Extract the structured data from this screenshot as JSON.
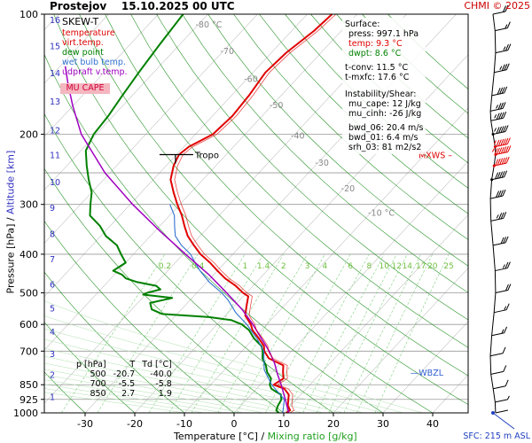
{
  "header": {
    "station": "Prostejov",
    "datetime": "15.10.2025 00 UTC",
    "copyright": "CHMI © 2025"
  },
  "legend": {
    "title": "SKEW-T",
    "items": [
      {
        "label": "temperature",
        "color": "#e00000"
      },
      {
        "label": "virt.temp.",
        "color": "#e00000"
      },
      {
        "label": "dew point",
        "color": "#008000"
      },
      {
        "label": "wet bulb temp.",
        "color": "#3070d0"
      },
      {
        "label": "udpraft v.temp.",
        "color": "#a000c0"
      }
    ],
    "mu_cape_label": "MU CAPE"
  },
  "surface": {
    "heading": "Surface:",
    "press": "press: 997.1 hPa",
    "temp": "temp: 9.3 °C",
    "dwpt": "dwpt: 8.6 °C",
    "tconv": "t-conv: 11.5 °C",
    "tmxfc": "t-mxfc: 17.6 °C"
  },
  "instability": {
    "heading": "Instability/Shear:",
    "mu_cape": "mu_cape: 12 J/kg",
    "mu_cinh": "mu_cinh: -26 J/kg",
    "bwd_06": "bwd_06: 20.4 m/s",
    "bwd_01": "bwd_01: 6.4 m/s",
    "srh_03": "srh_03: 81 m2/s2"
  },
  "level_table": {
    "headers": [
      "p [hPa]",
      "T",
      "Td [°C]"
    ],
    "rows": [
      [
        "500",
        "-20.7",
        "-40.0"
      ],
      [
        "700",
        "-5.5",
        "-5.8"
      ],
      [
        "850",
        "2.7",
        "1.9"
      ]
    ]
  },
  "annotations": {
    "tropo": "Tropo",
    "mxws": "MXWS",
    "wbzl": "WBZL",
    "sfc": "SFC: 215 m ASL"
  },
  "axes": {
    "xlabel": "Temperature [°C]",
    "xlabel_sep": "/",
    "xlabel2": "Mixing ratio [g/kg]",
    "ylabel": "Pressure [hPa]",
    "ylabel_sep": "/",
    "ylabel2": "Altitude [km]"
  },
  "colors": {
    "temperature": "#e00000",
    "dewpoint": "#008000",
    "wetbulb": "#3070d0",
    "parcel": "#a000c0",
    "dry_adiabat": "#008000",
    "mixing_ratio": "#80d080",
    "isobar": "#999999",
    "isotherm": "#888888",
    "altitude": "#3030c0"
  },
  "chart_data": {
    "type": "skew-t",
    "title": "SKEW-T",
    "xlabel": "Temperature [°C]",
    "ylabel": "Pressure [hPa]",
    "xlim": [
      -35,
      45
    ],
    "ylim_hpa": [
      1000,
      100
    ],
    "x_ticks": [
      -30,
      -20,
      -10,
      0,
      10,
      20,
      30,
      40
    ],
    "p_ticks": [
      100,
      200,
      300,
      400,
      500,
      600,
      700,
      850,
      925,
      1000
    ],
    "isobar_lines": [
      200,
      250,
      300,
      400,
      500,
      600,
      700,
      850,
      925
    ],
    "altitude_km": [
      {
        "label": "1",
        "p": 910
      },
      {
        "label": "2",
        "p": 800
      },
      {
        "label": "3",
        "p": 710
      },
      {
        "label": "4",
        "p": 625
      },
      {
        "label": "5",
        "p": 545
      },
      {
        "label": "6",
        "p": 475
      },
      {
        "label": "7",
        "p": 410
      },
      {
        "label": "8",
        "p": 355
      },
      {
        "label": "9",
        "p": 305
      },
      {
        "label": "10",
        "p": 263
      },
      {
        "label": "11",
        "p": 225
      },
      {
        "label": "12",
        "p": 195
      },
      {
        "label": "13",
        "p": 165
      },
      {
        "label": "14",
        "p": 140
      },
      {
        "label": "15",
        "p": 120
      },
      {
        "label": "16",
        "p": 103
      }
    ],
    "isotherm_labels": [
      {
        "label": "-80 °C",
        "value": -80,
        "p": 108
      },
      {
        "label": "-70",
        "value": -70,
        "p": 126
      },
      {
        "label": "-60",
        "value": -60,
        "p": 148
      },
      {
        "label": "-50",
        "value": -50,
        "p": 172
      },
      {
        "label": "-40",
        "value": -40,
        "p": 205
      },
      {
        "label": "-30",
        "value": -30,
        "p": 240
      },
      {
        "label": "-20",
        "value": -20,
        "p": 278
      },
      {
        "label": "-10 °C",
        "value": -10,
        "p": 320
      }
    ],
    "mixing_ratio_labels": [
      "0.2",
      "0.4",
      "1",
      "1.4",
      "2",
      "3",
      "4",
      "6",
      "8",
      "10",
      "12",
      "14",
      "17",
      "20",
      "25"
    ],
    "mixing_ratio_values": [
      0.2,
      0.4,
      1,
      1.4,
      2,
      3,
      4,
      6,
      8,
      10,
      12,
      14,
      17,
      20,
      25
    ],
    "series": [
      {
        "name": "temperature",
        "points": [
          [
            1000,
            10.5
          ],
          [
            985,
            10.8
          ],
          [
            960,
            9.5
          ],
          [
            925,
            8.4
          ],
          [
            900,
            7.6
          ],
          [
            870,
            5.6
          ],
          [
            850,
            2.7
          ],
          [
            820,
            3.5
          ],
          [
            790,
            2.2
          ],
          [
            760,
            1.0
          ],
          [
            730,
            -3.2
          ],
          [
            700,
            -5.5
          ],
          [
            680,
            -6.5
          ],
          [
            650,
            -9.0
          ],
          [
            620,
            -11.8
          ],
          [
            600,
            -13.2
          ],
          [
            570,
            -16.0
          ],
          [
            540,
            -17.5
          ],
          [
            510,
            -19.0
          ],
          [
            500,
            -20.7
          ],
          [
            480,
            -23.5
          ],
          [
            460,
            -27.0
          ],
          [
            440,
            -30.0
          ],
          [
            420,
            -33.0
          ],
          [
            400,
            -36.5
          ],
          [
            380,
            -39.5
          ],
          [
            360,
            -42.5
          ],
          [
            340,
            -45.0
          ],
          [
            320,
            -47.5
          ],
          [
            300,
            -50.5
          ],
          [
            280,
            -53.5
          ],
          [
            260,
            -56.5
          ],
          [
            240,
            -58.5
          ],
          [
            225,
            -59.5
          ],
          [
            215,
            -59.0
          ],
          [
            200,
            -56.5
          ],
          [
            180,
            -56.0
          ],
          [
            160,
            -56.5
          ],
          [
            140,
            -57.5
          ],
          [
            125,
            -57.0
          ],
          [
            110,
            -55.5
          ],
          [
            100,
            -55.0
          ]
        ]
      },
      {
        "name": "dew point",
        "points": [
          [
            1000,
            9.0
          ],
          [
            985,
            8.0
          ],
          [
            960,
            7.5
          ],
          [
            925,
            7.0
          ],
          [
            900,
            6.0
          ],
          [
            870,
            3.0
          ],
          [
            850,
            1.9
          ],
          [
            820,
            1.0
          ],
          [
            790,
            -1.0
          ],
          [
            760,
            -2.5
          ],
          [
            730,
            -4.5
          ],
          [
            700,
            -5.8
          ],
          [
            680,
            -7.0
          ],
          [
            650,
            -10.0
          ],
          [
            620,
            -12.5
          ],
          [
            600,
            -15.0
          ],
          [
            585,
            -18.0
          ],
          [
            575,
            -23.0
          ],
          [
            565,
            -33.0
          ],
          [
            550,
            -36.0
          ],
          [
            530,
            -37.5
          ],
          [
            515,
            -34.0
          ],
          [
            505,
            -40.5
          ],
          [
            500,
            -40.0
          ],
          [
            490,
            -38.0
          ],
          [
            480,
            -39.5
          ],
          [
            470,
            -44.0
          ],
          [
            460,
            -47.0
          ],
          [
            450,
            -48.5
          ],
          [
            440,
            -51.0
          ],
          [
            420,
            -50.0
          ],
          [
            400,
            -52.5
          ],
          [
            380,
            -55.0
          ],
          [
            360,
            -59.0
          ],
          [
            340,
            -62.0
          ],
          [
            320,
            -66.0
          ],
          [
            300,
            -68.0
          ],
          [
            280,
            -70.0
          ],
          [
            260,
            -73.0
          ],
          [
            240,
            -76.0
          ],
          [
            220,
            -79.0
          ],
          [
            200,
            -80.5
          ],
          [
            180,
            -81.0
          ],
          [
            160,
            -82.0
          ],
          [
            140,
            -83.0
          ],
          [
            120,
            -84.0
          ],
          [
            100,
            -85.0
          ]
        ]
      },
      {
        "name": "wet bulb temp.",
        "points": [
          [
            1000,
            9.8
          ],
          [
            925,
            7.6
          ],
          [
            850,
            2.3
          ],
          [
            780,
            -2.0
          ],
          [
            700,
            -5.6
          ],
          [
            650,
            -9.4
          ],
          [
            600,
            -14.0
          ],
          [
            560,
            -18.5
          ],
          [
            520,
            -22.5
          ],
          [
            500,
            -25.0
          ],
          [
            470,
            -29.5
          ],
          [
            440,
            -33.5
          ],
          [
            420,
            -36.0
          ],
          [
            400,
            -38.5
          ],
          [
            380,
            -42.0
          ],
          [
            360,
            -45.0
          ],
          [
            340,
            -47.0
          ],
          [
            320,
            -49.0
          ],
          [
            300,
            -52.0
          ]
        ]
      },
      {
        "name": "udpraft v.temp.",
        "points": [
          [
            1000,
            11.0
          ],
          [
            925,
            7.8
          ],
          [
            850,
            4.2
          ],
          [
            800,
            1.5
          ],
          [
            750,
            -1.2
          ],
          [
            700,
            -4.5
          ],
          [
            650,
            -8.5
          ],
          [
            600,
            -12.8
          ],
          [
            550,
            -17.8
          ],
          [
            500,
            -24.0
          ],
          [
            450,
            -31.0
          ],
          [
            400,
            -39.5
          ],
          [
            350,
            -49.0
          ],
          [
            300,
            -59.5
          ],
          [
            250,
            -71.0
          ],
          [
            200,
            -83.0
          ],
          [
            170,
            -90.0
          ],
          [
            150,
            -95.0
          ],
          [
            135,
            -99.0
          ]
        ]
      }
    ],
    "tropopause_hpa": 225,
    "max_wind_hpa": 225,
    "wbzl_hpa": 795,
    "wind_profile": [
      {
        "p": 100,
        "speed_kt": 20
      },
      {
        "p": 110,
        "speed_kt": 15
      },
      {
        "p": 125,
        "speed_kt": 25
      },
      {
        "p": 140,
        "speed_kt": 35
      },
      {
        "p": 160,
        "speed_kt": 40
      },
      {
        "p": 175,
        "speed_kt": 35
      },
      {
        "p": 185,
        "speed_kt": 45
      },
      {
        "p": 200,
        "speed_kt": 55
      },
      {
        "p": 215,
        "speed_kt": 65
      },
      {
        "p": 225,
        "speed_kt": 75
      },
      {
        "p": 240,
        "speed_kt": 60
      },
      {
        "p": 260,
        "speed_kt": 50
      },
      {
        "p": 290,
        "speed_kt": 40
      },
      {
        "p": 330,
        "speed_kt": 35
      },
      {
        "p": 380,
        "speed_kt": 30
      },
      {
        "p": 440,
        "speed_kt": 25
      },
      {
        "p": 500,
        "speed_kt": 20
      },
      {
        "p": 560,
        "speed_kt": 15
      },
      {
        "p": 640,
        "speed_kt": 15
      },
      {
        "p": 720,
        "speed_kt": 10
      },
      {
        "p": 800,
        "speed_kt": 10
      },
      {
        "p": 870,
        "speed_kt": 10
      },
      {
        "p": 940,
        "speed_kt": 5
      },
      {
        "p": 1000,
        "speed_kt": 0
      }
    ]
  }
}
